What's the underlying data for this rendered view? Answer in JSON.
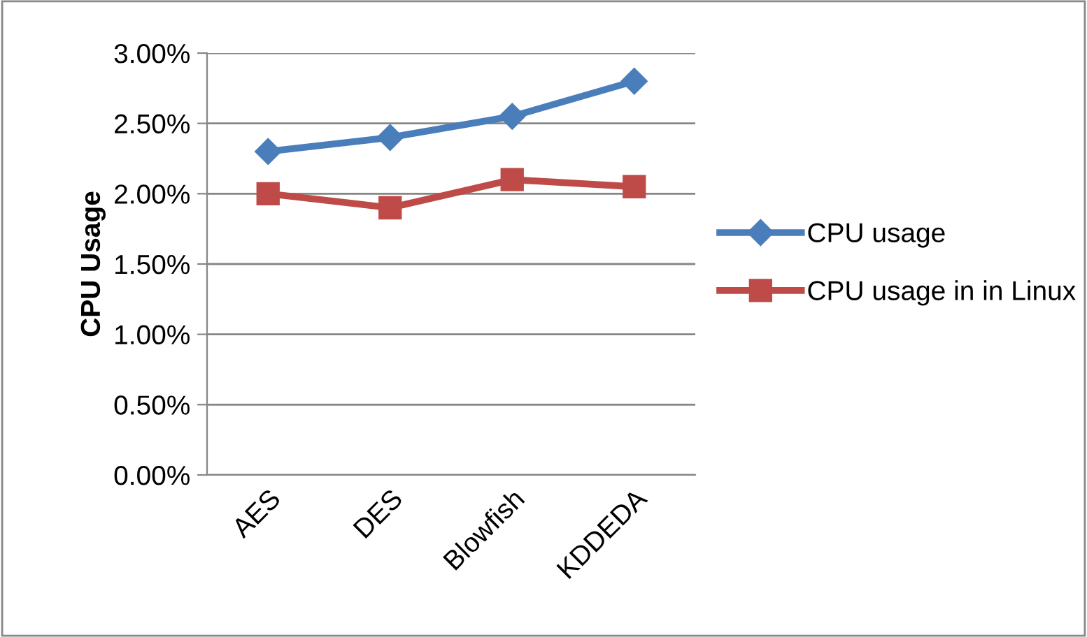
{
  "chart_data": {
    "type": "line",
    "ylabel": "CPU Usage",
    "categories": [
      "AES",
      "DES",
      "Blowfish",
      "KDDEDA"
    ],
    "series": [
      {
        "name": "CPU usage",
        "color": "#4a7ebb",
        "marker": "diamond",
        "values": [
          2.3,
          2.4,
          2.55,
          2.8
        ]
      },
      {
        "name": "CPU usage in in Linux",
        "color": "#be4b48",
        "marker": "square",
        "values": [
          2.0,
          1.9,
          2.1,
          2.05
        ]
      }
    ],
    "ylim": [
      0,
      3
    ],
    "yticks": [
      {
        "value": 0,
        "label": "0.00%"
      },
      {
        "value": 0.5,
        "label": "0.50%"
      },
      {
        "value": 1,
        "label": "1.00%"
      },
      {
        "value": 1.5,
        "label": "1.50%"
      },
      {
        "value": 2,
        "label": "2.00%"
      },
      {
        "value": 2.5,
        "label": "2.50%"
      },
      {
        "value": 3,
        "label": "3.00%"
      }
    ],
    "grid": "y",
    "legend": "right",
    "line_style": "solid"
  }
}
